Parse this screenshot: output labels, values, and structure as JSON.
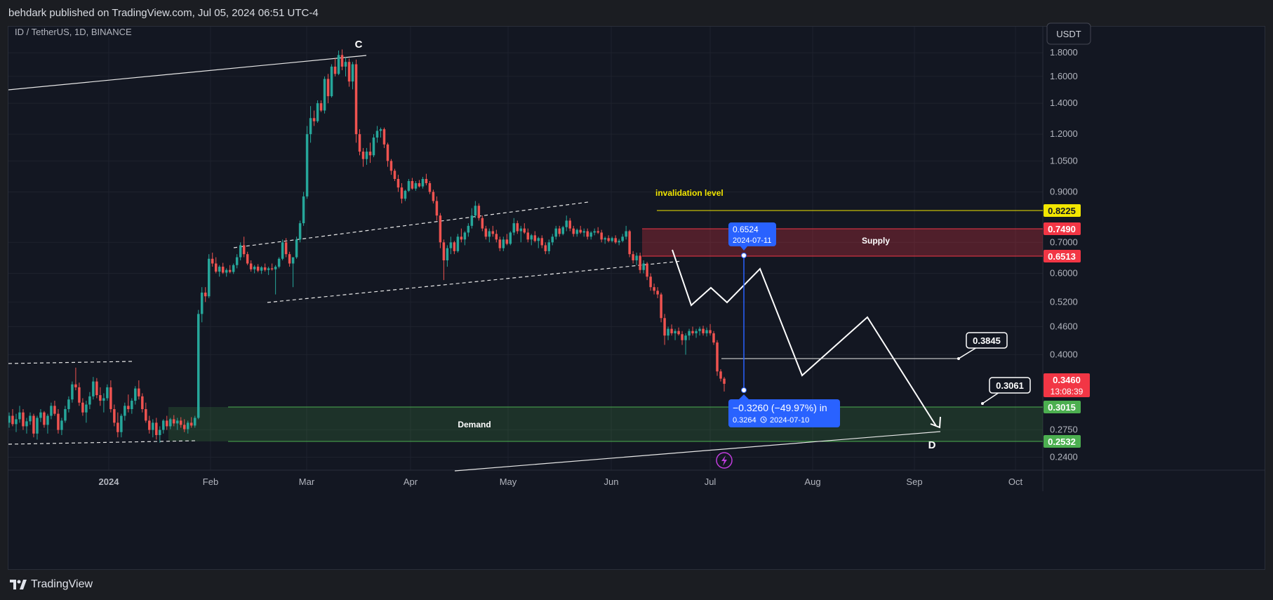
{
  "header": {
    "publisher_line": "behdark published on TradingView.com, Jul 05, 2024 06:51 UTC-4"
  },
  "footer": {
    "brand": "TradingView"
  },
  "chart_data": {
    "type": "candlestick",
    "title": "ID / TetherUS, 1D, BINANCE",
    "currency_button": "USDT",
    "y_scale": "log",
    "ylim": [
      0.225,
      2.05
    ],
    "y_ticks": [
      "1.8000",
      "1.6000",
      "1.4000",
      "1.2000",
      "1.0500",
      "0.9000",
      "0.7000",
      "0.6000",
      "0.5200",
      "0.4600",
      "0.4000",
      "0.2750",
      "0.2400"
    ],
    "x_ticks": [
      "2024",
      "Feb",
      "Mar",
      "Apr",
      "May",
      "Jun",
      "Jul",
      "Aug",
      "Sep",
      "Oct"
    ],
    "price_labels": {
      "invalidation": "0.8225",
      "supply_top": "0.7490",
      "supply_bottom": "0.6513",
      "last_price": "0.3460",
      "countdown": "13:08:39",
      "demand_top": "0.3015",
      "demand_bottom": "0.2532"
    },
    "zones": {
      "supply": "Supply",
      "demand": "Demand"
    },
    "annotations": {
      "invalidation": "invalidation level",
      "wave_c": "C",
      "wave_d": "D",
      "target1": "0.3845",
      "target2": "0.3061",
      "measure_top_price": "0.6524",
      "measure_top_date": "2024-07-11",
      "measure_change": "−0.3260 (−49.97%) in",
      "measure_bottom_price": "0.3264",
      "measure_bottom_date": "2024-07-10"
    },
    "colors": {
      "up": "#26a69a",
      "down": "#ef5350",
      "invalidation": "#f2e600",
      "demand": "#4caf50",
      "supply": "#f23645",
      "measure": "#2962ff"
    },
    "candles": [
      [
        0.285,
        0.3,
        0.278,
        0.295
      ],
      [
        0.295,
        0.305,
        0.28,
        0.283
      ],
      [
        0.283,
        0.298,
        0.272,
        0.29
      ],
      [
        0.29,
        0.31,
        0.285,
        0.3
      ],
      [
        0.3,
        0.305,
        0.275,
        0.28
      ],
      [
        0.28,
        0.292,
        0.27,
        0.287
      ],
      [
        0.287,
        0.3,
        0.282,
        0.295
      ],
      [
        0.295,
        0.298,
        0.265,
        0.27
      ],
      [
        0.27,
        0.295,
        0.262,
        0.292
      ],
      [
        0.292,
        0.305,
        0.286,
        0.3
      ],
      [
        0.3,
        0.302,
        0.278,
        0.282
      ],
      [
        0.282,
        0.298,
        0.27,
        0.295
      ],
      [
        0.295,
        0.315,
        0.29,
        0.31
      ],
      [
        0.31,
        0.318,
        0.295,
        0.298
      ],
      [
        0.298,
        0.305,
        0.27,
        0.275
      ],
      [
        0.275,
        0.292,
        0.268,
        0.288
      ],
      [
        0.288,
        0.31,
        0.285,
        0.305
      ],
      [
        0.305,
        0.325,
        0.3,
        0.32
      ],
      [
        0.32,
        0.35,
        0.315,
        0.345
      ],
      [
        0.345,
        0.375,
        0.335,
        0.34
      ],
      [
        0.34,
        0.348,
        0.31,
        0.315
      ],
      [
        0.315,
        0.322,
        0.295,
        0.3
      ],
      [
        0.3,
        0.318,
        0.285,
        0.312
      ],
      [
        0.312,
        0.332,
        0.305,
        0.325
      ],
      [
        0.325,
        0.358,
        0.32,
        0.35
      ],
      [
        0.35,
        0.356,
        0.322,
        0.327
      ],
      [
        0.327,
        0.34,
        0.31,
        0.318
      ],
      [
        0.318,
        0.33,
        0.3,
        0.322
      ],
      [
        0.322,
        0.345,
        0.318,
        0.34
      ],
      [
        0.34,
        0.352,
        0.3,
        0.305
      ],
      [
        0.305,
        0.312,
        0.28,
        0.285
      ],
      [
        0.285,
        0.3,
        0.265,
        0.272
      ],
      [
        0.272,
        0.298,
        0.265,
        0.295
      ],
      [
        0.295,
        0.315,
        0.288,
        0.31
      ],
      [
        0.31,
        0.328,
        0.3,
        0.305
      ],
      [
        0.305,
        0.322,
        0.298,
        0.318
      ],
      [
        0.318,
        0.342,
        0.312,
        0.338
      ],
      [
        0.338,
        0.352,
        0.32,
        0.325
      ],
      [
        0.325,
        0.33,
        0.3,
        0.305
      ],
      [
        0.305,
        0.315,
        0.285,
        0.288
      ],
      [
        0.288,
        0.295,
        0.27,
        0.275
      ],
      [
        0.275,
        0.29,
        0.265,
        0.285
      ],
      [
        0.285,
        0.292,
        0.262,
        0.268
      ],
      [
        0.268,
        0.28,
        0.258,
        0.275
      ],
      [
        0.275,
        0.29,
        0.27,
        0.288
      ],
      [
        0.288,
        0.295,
        0.275,
        0.28
      ],
      [
        0.28,
        0.292,
        0.276,
        0.29
      ],
      [
        0.29,
        0.296,
        0.28,
        0.284
      ],
      [
        0.284,
        0.292,
        0.275,
        0.288
      ],
      [
        0.288,
        0.293,
        0.278,
        0.282
      ],
      [
        0.282,
        0.29,
        0.272,
        0.276
      ],
      [
        0.276,
        0.288,
        0.27,
        0.285
      ],
      [
        0.285,
        0.293,
        0.278,
        0.281
      ],
      [
        0.281,
        0.295,
        0.278,
        0.292
      ],
      [
        0.292,
        0.5,
        0.29,
        0.49
      ],
      [
        0.49,
        0.56,
        0.47,
        0.545
      ],
      [
        0.545,
        0.56,
        0.52,
        0.535
      ],
      [
        0.535,
        0.66,
        0.53,
        0.645
      ],
      [
        0.645,
        0.665,
        0.62,
        0.63
      ],
      [
        0.63,
        0.65,
        0.6,
        0.605
      ],
      [
        0.605,
        0.625,
        0.59,
        0.62
      ],
      [
        0.62,
        0.632,
        0.598,
        0.602
      ],
      [
        0.602,
        0.615,
        0.59,
        0.61
      ],
      [
        0.61,
        0.625,
        0.6,
        0.604
      ],
      [
        0.604,
        0.63,
        0.598,
        0.625
      ],
      [
        0.625,
        0.66,
        0.615,
        0.65
      ],
      [
        0.65,
        0.7,
        0.64,
        0.69
      ],
      [
        0.69,
        0.72,
        0.65,
        0.66
      ],
      [
        0.66,
        0.668,
        0.625,
        0.63
      ],
      [
        0.63,
        0.64,
        0.605,
        0.612
      ],
      [
        0.612,
        0.625,
        0.6,
        0.62
      ],
      [
        0.62,
        0.628,
        0.603,
        0.608
      ],
      [
        0.608,
        0.622,
        0.598,
        0.618
      ],
      [
        0.618,
        0.63,
        0.605,
        0.61
      ],
      [
        0.61,
        0.62,
        0.595,
        0.615
      ],
      [
        0.615,
        0.63,
        0.608,
        0.612
      ],
      [
        0.612,
        0.625,
        0.54,
        0.62
      ],
      [
        0.62,
        0.65,
        0.615,
        0.645
      ],
      [
        0.645,
        0.71,
        0.64,
        0.7
      ],
      [
        0.7,
        0.715,
        0.65,
        0.66
      ],
      [
        0.66,
        0.668,
        0.62,
        0.63
      ],
      [
        0.63,
        0.64,
        0.56,
        0.65
      ],
      [
        0.65,
        0.72,
        0.645,
        0.71
      ],
      [
        0.71,
        0.78,
        0.7,
        0.77
      ],
      [
        0.77,
        0.9,
        0.76,
        0.88
      ],
      [
        0.88,
        1.25,
        0.87,
        1.2
      ],
      [
        1.2,
        1.38,
        1.15,
        1.3
      ],
      [
        1.3,
        1.35,
        1.25,
        1.28
      ],
      [
        1.28,
        1.42,
        1.27,
        1.4
      ],
      [
        1.4,
        1.42,
        1.34,
        1.35
      ],
      [
        1.35,
        1.6,
        1.33,
        1.58
      ],
      [
        1.58,
        1.62,
        1.4,
        1.45
      ],
      [
        1.45,
        1.7,
        1.44,
        1.68
      ],
      [
        1.68,
        1.75,
        1.6,
        1.62
      ],
      [
        1.62,
        1.82,
        1.61,
        1.78
      ],
      [
        1.78,
        1.83,
        1.65,
        1.68
      ],
      [
        1.68,
        1.76,
        1.6,
        1.72
      ],
      [
        1.72,
        1.75,
        1.52,
        1.56
      ],
      [
        1.56,
        1.72,
        1.5,
        1.7
      ],
      [
        1.7,
        1.74,
        1.15,
        1.2
      ],
      [
        1.2,
        1.23,
        1.08,
        1.1
      ],
      [
        1.1,
        1.12,
        1.02,
        1.06
      ],
      [
        1.06,
        1.12,
        1.03,
        1.1
      ],
      [
        1.1,
        1.15,
        1.04,
        1.08
      ],
      [
        1.08,
        1.2,
        1.07,
        1.18
      ],
      [
        1.18,
        1.25,
        1.15,
        1.22
      ],
      [
        1.22,
        1.24,
        1.18,
        1.23
      ],
      [
        1.23,
        1.24,
        1.12,
        1.14
      ],
      [
        1.14,
        1.15,
        1.02,
        1.05
      ],
      [
        1.05,
        1.06,
        0.98,
        1.0
      ],
      [
        1.0,
        1.01,
        0.95,
        0.96
      ],
      [
        0.96,
        0.98,
        0.9,
        0.92
      ],
      [
        0.92,
        0.94,
        0.85,
        0.87
      ],
      [
        0.87,
        0.91,
        0.86,
        0.905
      ],
      [
        0.905,
        0.96,
        0.9,
        0.95
      ],
      [
        0.95,
        0.965,
        0.91,
        0.915
      ],
      [
        0.915,
        0.95,
        0.905,
        0.94
      ],
      [
        0.94,
        0.955,
        0.92,
        0.925
      ],
      [
        0.925,
        0.97,
        0.915,
        0.96
      ],
      [
        0.96,
        0.985,
        0.93,
        0.94
      ],
      [
        0.94,
        0.95,
        0.89,
        0.9
      ],
      [
        0.9,
        0.91,
        0.85,
        0.86
      ],
      [
        0.86,
        0.88,
        0.78,
        0.8
      ],
      [
        0.8,
        0.81,
        0.68,
        0.7
      ],
      [
        0.7,
        0.71,
        0.58,
        0.64
      ],
      [
        0.64,
        0.69,
        0.62,
        0.68
      ],
      [
        0.68,
        0.72,
        0.66,
        0.7
      ],
      [
        0.7,
        0.705,
        0.66,
        0.67
      ],
      [
        0.67,
        0.73,
        0.665,
        0.72
      ],
      [
        0.72,
        0.75,
        0.7,
        0.71
      ],
      [
        0.71,
        0.74,
        0.69,
        0.735
      ],
      [
        0.735,
        0.77,
        0.72,
        0.76
      ],
      [
        0.76,
        0.83,
        0.75,
        0.8
      ],
      [
        0.8,
        0.86,
        0.79,
        0.84
      ],
      [
        0.84,
        0.85,
        0.78,
        0.79
      ],
      [
        0.79,
        0.8,
        0.74,
        0.75
      ],
      [
        0.75,
        0.76,
        0.71,
        0.72
      ],
      [
        0.72,
        0.75,
        0.7,
        0.74
      ],
      [
        0.74,
        0.76,
        0.72,
        0.73
      ],
      [
        0.73,
        0.745,
        0.7,
        0.71
      ],
      [
        0.71,
        0.72,
        0.67,
        0.68
      ],
      [
        0.68,
        0.72,
        0.67,
        0.71
      ],
      [
        0.71,
        0.73,
        0.69,
        0.695
      ],
      [
        0.695,
        0.74,
        0.69,
        0.735
      ],
      [
        0.735,
        0.79,
        0.725,
        0.77
      ],
      [
        0.77,
        0.78,
        0.73,
        0.74
      ],
      [
        0.74,
        0.76,
        0.7,
        0.75
      ],
      [
        0.75,
        0.77,
        0.73,
        0.735
      ],
      [
        0.735,
        0.75,
        0.7,
        0.71
      ],
      [
        0.71,
        0.73,
        0.69,
        0.725
      ],
      [
        0.725,
        0.74,
        0.7,
        0.705
      ],
      [
        0.705,
        0.72,
        0.68,
        0.715
      ],
      [
        0.715,
        0.725,
        0.68,
        0.69
      ],
      [
        0.69,
        0.7,
        0.66,
        0.67
      ],
      [
        0.67,
        0.71,
        0.66,
        0.7
      ],
      [
        0.7,
        0.73,
        0.69,
        0.72
      ],
      [
        0.72,
        0.76,
        0.71,
        0.75
      ],
      [
        0.75,
        0.76,
        0.72,
        0.73
      ],
      [
        0.73,
        0.76,
        0.725,
        0.755
      ],
      [
        0.755,
        0.8,
        0.74,
        0.78
      ],
      [
        0.78,
        0.79,
        0.74,
        0.75
      ],
      [
        0.75,
        0.76,
        0.72,
        0.73
      ],
      [
        0.73,
        0.75,
        0.72,
        0.745
      ],
      [
        0.745,
        0.76,
        0.73,
        0.735
      ],
      [
        0.735,
        0.75,
        0.72,
        0.74
      ],
      [
        0.74,
        0.75,
        0.71,
        0.72
      ],
      [
        0.72,
        0.74,
        0.71,
        0.735
      ],
      [
        0.735,
        0.75,
        0.725,
        0.74
      ],
      [
        0.74,
        0.755,
        0.73,
        0.735
      ],
      [
        0.735,
        0.745,
        0.7,
        0.71
      ],
      [
        0.71,
        0.72,
        0.695,
        0.715
      ],
      [
        0.715,
        0.725,
        0.7,
        0.705
      ],
      [
        0.705,
        0.72,
        0.7,
        0.715
      ],
      [
        0.715,
        0.725,
        0.695,
        0.7
      ],
      [
        0.7,
        0.712,
        0.69,
        0.705
      ],
      [
        0.705,
        0.73,
        0.7,
        0.72
      ],
      [
        0.72,
        0.76,
        0.71,
        0.74
      ],
      [
        0.74,
        0.745,
        0.65,
        0.66
      ],
      [
        0.66,
        0.67,
        0.63,
        0.64
      ],
      [
        0.64,
        0.665,
        0.625,
        0.655
      ],
      [
        0.655,
        0.665,
        0.6,
        0.61
      ],
      [
        0.61,
        0.64,
        0.6,
        0.63
      ],
      [
        0.63,
        0.635,
        0.58,
        0.59
      ],
      [
        0.59,
        0.6,
        0.55,
        0.56
      ],
      [
        0.56,
        0.57,
        0.54,
        0.55
      ],
      [
        0.55,
        0.56,
        0.53,
        0.54
      ],
      [
        0.54,
        0.545,
        0.47,
        0.48
      ],
      [
        0.48,
        0.49,
        0.42,
        0.44
      ],
      [
        0.44,
        0.46,
        0.43,
        0.455
      ],
      [
        0.455,
        0.465,
        0.44,
        0.445
      ],
      [
        0.445,
        0.455,
        0.43,
        0.45
      ],
      [
        0.45,
        0.458,
        0.44,
        0.443
      ],
      [
        0.443,
        0.45,
        0.42,
        0.43
      ],
      [
        0.43,
        0.445,
        0.4,
        0.44
      ],
      [
        0.44,
        0.455,
        0.43,
        0.45
      ],
      [
        0.45,
        0.46,
        0.44,
        0.445
      ],
      [
        0.445,
        0.455,
        0.435,
        0.45
      ],
      [
        0.45,
        0.46,
        0.44,
        0.455
      ],
      [
        0.455,
        0.462,
        0.44,
        0.445
      ],
      [
        0.445,
        0.458,
        0.438,
        0.452
      ],
      [
        0.452,
        0.466,
        0.44,
        0.445
      ],
      [
        0.445,
        0.45,
        0.42,
        0.425
      ],
      [
        0.425,
        0.43,
        0.36,
        0.368
      ],
      [
        0.368,
        0.372,
        0.35,
        0.355
      ],
      [
        0.355,
        0.358,
        0.333,
        0.346
      ]
    ]
  }
}
